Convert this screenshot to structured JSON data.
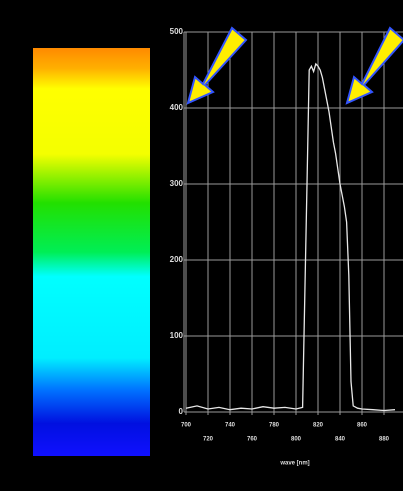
{
  "chart_data": {
    "type": "line",
    "x_label": "wave [nm]",
    "x": [
      700,
      710,
      720,
      730,
      740,
      750,
      760,
      770,
      780,
      790,
      800,
      806,
      810,
      812,
      814,
      816,
      818,
      820,
      822,
      824,
      826,
      828,
      830,
      832,
      834,
      836,
      838,
      840,
      842,
      844,
      846,
      848,
      850,
      852,
      856,
      860,
      870,
      880,
      890
    ],
    "series": [
      {
        "color": "#e8e8e8",
        "values": [
          5,
          8,
          4,
          6,
          3,
          5,
          4,
          7,
          5,
          6,
          4,
          6,
          300,
          450,
          455,
          448,
          458,
          455,
          450,
          440,
          425,
          410,
          395,
          375,
          355,
          340,
          320,
          300,
          285,
          270,
          250,
          180,
          40,
          8,
          5,
          4,
          3,
          2,
          3
        ]
      }
    ],
    "xlim": [
      700,
      895
    ],
    "ylim": [
      0,
      500
    ],
    "xticks": [
      700,
      720,
      740,
      760,
      780,
      800,
      820,
      840,
      860,
      880
    ],
    "yticks": [
      0,
      100,
      200,
      300,
      400,
      500
    ],
    "grid": true
  }
}
